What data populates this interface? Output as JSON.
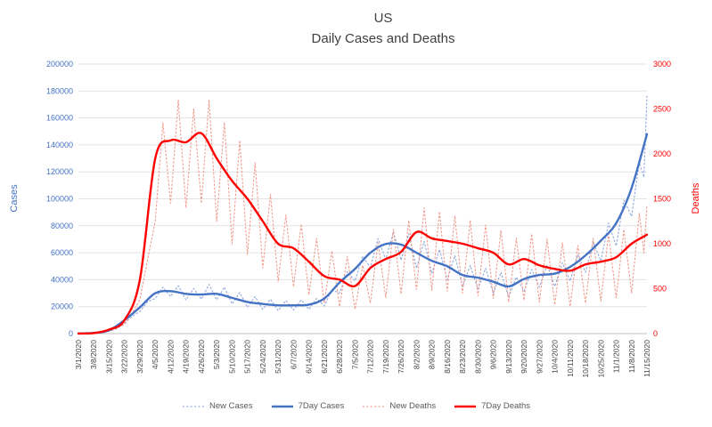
{
  "chart_data": {
    "type": "line",
    "title_line1": "US",
    "title_line2": "Daily Cases and Deaths",
    "title": "US Daily Cases and Deaths",
    "legend_position": "bottom",
    "grid": "horizontal",
    "x_labels": [
      "3/1/2020",
      "3/8/2020",
      "3/15/2020",
      "3/22/2020",
      "3/29/2020",
      "4/5/2020",
      "4/12/2020",
      "4/19/2020",
      "4/26/2020",
      "5/3/2020",
      "5/10/2020",
      "5/17/2020",
      "5/24/2020",
      "5/31/2020",
      "6/7/2020",
      "6/14/2020",
      "6/21/2020",
      "6/28/2020",
      "7/5/2020",
      "7/12/2020",
      "7/19/2020",
      "7/26/2020",
      "8/2/2020",
      "8/9/2020",
      "8/16/2020",
      "8/23/2020",
      "8/30/2020",
      "9/6/2020",
      "9/13/2020",
      "9/20/2020",
      "9/27/2020",
      "10/4/2020",
      "10/11/2020",
      "10/18/2020",
      "10/25/2020",
      "11/1/2020",
      "11/8/2020",
      "11/15/2020"
    ],
    "left_axis": {
      "title": "Cases",
      "min": 0,
      "max": 200000,
      "step": 20000,
      "color": "#4472C4"
    },
    "right_axis": {
      "title": "Deaths",
      "min": 0,
      "max": 3000,
      "step": 500,
      "color": "#FF0000"
    },
    "grid_color": "#E2E2E2",
    "axis_line_color": "#BFBFBF",
    "series": [
      {
        "name": "New Cases",
        "axis": "left",
        "style": "dotted",
        "color": "#8FA8DC",
        "points": [
          [
            0,
            60
          ],
          [
            0.5,
            95
          ],
          [
            1,
            350
          ],
          [
            1.5,
            750
          ],
          [
            2,
            1800
          ],
          [
            2.5,
            3600
          ],
          [
            3,
            7800
          ],
          [
            3.5,
            12800
          ],
          [
            4,
            16500
          ],
          [
            4.5,
            23500
          ],
          [
            5,
            26000
          ],
          [
            5.5,
            34500
          ],
          [
            6,
            27500
          ],
          [
            6.5,
            35500
          ],
          [
            7,
            25000
          ],
          [
            7.5,
            33500
          ],
          [
            8,
            25500
          ],
          [
            8.5,
            36500
          ],
          [
            9,
            25000
          ],
          [
            9.5,
            34500
          ],
          [
            10,
            22000
          ],
          [
            10.5,
            30500
          ],
          [
            11,
            19500
          ],
          [
            11.5,
            27500
          ],
          [
            12,
            18000
          ],
          [
            12.5,
            25500
          ],
          [
            13,
            17000
          ],
          [
            13.5,
            24500
          ],
          [
            14,
            17500
          ],
          [
            14.5,
            25000
          ],
          [
            15,
            18000
          ],
          [
            15.5,
            26000
          ],
          [
            16,
            20500
          ],
          [
            16.5,
            32500
          ],
          [
            17,
            30000
          ],
          [
            17.5,
            46000
          ],
          [
            18,
            39000
          ],
          [
            18.5,
            57500
          ],
          [
            19,
            49000
          ],
          [
            19.5,
            70500
          ],
          [
            20,
            55000
          ],
          [
            20.5,
            75500
          ],
          [
            21,
            54500
          ],
          [
            21.5,
            74000
          ],
          [
            22,
            48500
          ],
          [
            22.5,
            68500
          ],
          [
            23,
            44500
          ],
          [
            23.5,
            62500
          ],
          [
            24,
            40000
          ],
          [
            24.5,
            58000
          ],
          [
            25,
            35000
          ],
          [
            25.5,
            50500
          ],
          [
            26,
            33000
          ],
          [
            26.5,
            48500
          ],
          [
            27,
            30000
          ],
          [
            27.5,
            45500
          ],
          [
            28,
            27000
          ],
          [
            28.5,
            42000
          ],
          [
            29,
            31500
          ],
          [
            29.5,
            47500
          ],
          [
            30,
            34500
          ],
          [
            30.5,
            51000
          ],
          [
            31,
            35000
          ],
          [
            31.5,
            52500
          ],
          [
            32,
            39000
          ],
          [
            32.5,
            58500
          ],
          [
            33,
            45500
          ],
          [
            33.5,
            68000
          ],
          [
            34,
            54000
          ],
          [
            34.5,
            82000
          ],
          [
            35,
            65000
          ],
          [
            35.5,
            99000
          ],
          [
            36,
            87000
          ],
          [
            36.5,
            127000
          ],
          [
            36.8,
            116000
          ],
          [
            37,
            176000
          ]
        ]
      },
      {
        "name": "7Day Cases",
        "axis": "left",
        "style": "solid",
        "color": "#4472C4",
        "values": [
          70,
          500,
          2500,
          10000,
          19500,
          30000,
          31500,
          29500,
          29000,
          29500,
          26500,
          23500,
          22000,
          21000,
          21000,
          21500,
          26000,
          38000,
          48000,
          60000,
          66500,
          66000,
          60000,
          54000,
          50000,
          43500,
          41500,
          38500,
          35000,
          40500,
          43500,
          44500,
          49500,
          58000,
          69000,
          82000,
          108000,
          148000
        ]
      },
      {
        "name": "New Deaths",
        "axis": "right",
        "style": "dotted",
        "color": "#F19B8E",
        "points": [
          [
            0,
            1
          ],
          [
            0.5,
            2
          ],
          [
            1,
            4
          ],
          [
            1.5,
            9
          ],
          [
            2,
            28
          ],
          [
            2.5,
            62
          ],
          [
            3,
            100
          ],
          [
            3.5,
            230
          ],
          [
            4,
            380
          ],
          [
            4.5,
            820
          ],
          [
            5,
            1250
          ],
          [
            5.5,
            2350
          ],
          [
            6,
            1450
          ],
          [
            6.5,
            2600
          ],
          [
            7,
            1400
          ],
          [
            7.5,
            2500
          ],
          [
            8,
            1450
          ],
          [
            8.5,
            2600
          ],
          [
            9,
            1250
          ],
          [
            9.5,
            2350
          ],
          [
            10,
            1000
          ],
          [
            10.5,
            2150
          ],
          [
            11,
            880
          ],
          [
            11.5,
            1900
          ],
          [
            12,
            730
          ],
          [
            12.5,
            1550
          ],
          [
            13,
            580
          ],
          [
            13.5,
            1320
          ],
          [
            14,
            520
          ],
          [
            14.5,
            1220
          ],
          [
            15,
            430
          ],
          [
            15.5,
            1060
          ],
          [
            16,
            340
          ],
          [
            16.5,
            920
          ],
          [
            17,
            300
          ],
          [
            17.5,
            860
          ],
          [
            18,
            270
          ],
          [
            18.5,
            760
          ],
          [
            19,
            340
          ],
          [
            19.5,
            1010
          ],
          [
            20,
            400
          ],
          [
            20.5,
            1160
          ],
          [
            21,
            440
          ],
          [
            21.5,
            1260
          ],
          [
            22,
            490
          ],
          [
            22.5,
            1400
          ],
          [
            23,
            480
          ],
          [
            23.5,
            1360
          ],
          [
            24,
            470
          ],
          [
            24.5,
            1310
          ],
          [
            25,
            450
          ],
          [
            25.5,
            1260
          ],
          [
            26,
            420
          ],
          [
            26.5,
            1210
          ],
          [
            27,
            390
          ],
          [
            27.5,
            1150
          ],
          [
            28,
            350
          ],
          [
            28.5,
            1060
          ],
          [
            29,
            370
          ],
          [
            29.5,
            1110
          ],
          [
            30,
            350
          ],
          [
            30.5,
            1050
          ],
          [
            31,
            320
          ],
          [
            31.5,
            1010
          ],
          [
            32,
            300
          ],
          [
            32.5,
            980
          ],
          [
            33,
            340
          ],
          [
            33.5,
            1060
          ],
          [
            34,
            360
          ],
          [
            34.5,
            1110
          ],
          [
            35,
            400
          ],
          [
            35.5,
            1160
          ],
          [
            36,
            450
          ],
          [
            36.5,
            1340
          ],
          [
            36.8,
            900
          ],
          [
            37,
            1420
          ]
        ]
      },
      {
        "name": "7Day Deaths",
        "axis": "right",
        "style": "solid",
        "color": "#FF0000",
        "values": [
          1,
          5,
          45,
          150,
          600,
          1950,
          2150,
          2130,
          2230,
          1950,
          1700,
          1500,
          1250,
          1000,
          950,
          800,
          640,
          600,
          530,
          730,
          830,
          910,
          1130,
          1060,
          1030,
          1000,
          950,
          900,
          770,
          830,
          760,
          720,
          700,
          770,
          800,
          850,
          1000,
          1100
        ]
      }
    ]
  }
}
